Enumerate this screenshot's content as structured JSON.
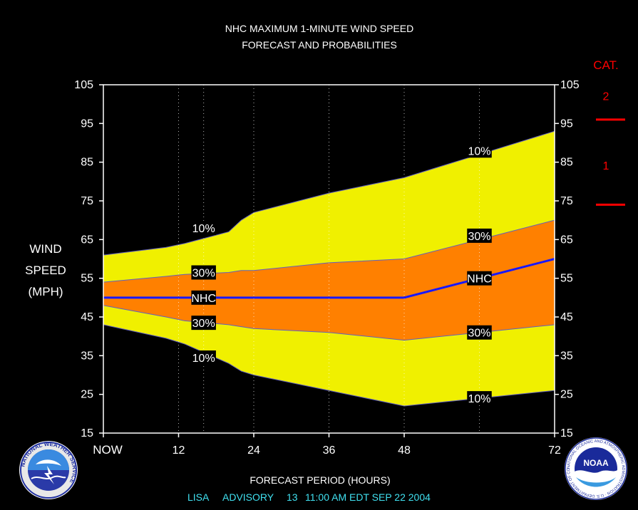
{
  "title_line1": "NHC MAXIMUM 1-MINUTE WIND SPEED",
  "title_line2": "FORECAST AND PROBABILITIES",
  "footer": {
    "storm": "LISA",
    "advisory_label": "ADVISORY",
    "advisory_number": "13",
    "datetime": "11:00 AM EDT SEP 22 2004"
  },
  "logos": {
    "left_text": "NATIONAL WEATHER SERVICE",
    "right_text": "NOAA",
    "right_ring_text": "NATIONAL OCEANIC AND ATMOSPHERIC ADMINISTRATION · U.S. DEPARTMENT OF COMMERCE"
  },
  "colors": {
    "background": "#000000",
    "band_10": "#f0f000",
    "band_30": "#ff8000",
    "nhc_line": "#1818ff",
    "band_edge": "#6060c0",
    "category": "#ff0000",
    "footer": "#40e0f0",
    "text": "#ffffff"
  },
  "chart_data": {
    "type": "area",
    "title": "NHC MAXIMUM 1-MINUTE WIND SPEED",
    "subtitle": "FORECAST AND PROBABILITIES",
    "xlabel": "FORECAST PERIOD (HOURS)",
    "ylabel": [
      "WIND",
      "SPEED",
      "(MPH)"
    ],
    "xlim": [
      0,
      72
    ],
    "ylim": [
      15,
      105
    ],
    "x_ticks": [
      {
        "x": 0,
        "label": "NOW"
      },
      {
        "x": 12,
        "label": "12"
      },
      {
        "x": 24,
        "label": "24"
      },
      {
        "x": 36,
        "label": "36"
      },
      {
        "x": 48,
        "label": "48"
      },
      {
        "x": 72,
        "label": "72"
      }
    ],
    "x_grid": [
      12,
      16,
      24,
      36,
      48,
      60
    ],
    "y_ticks": [
      15,
      25,
      35,
      45,
      55,
      65,
      75,
      85,
      95,
      105
    ],
    "series": [
      {
        "name": "10%",
        "x": [
          0,
          10,
          13,
          20,
          22,
          24,
          36,
          48,
          60,
          72
        ],
        "values": [
          61,
          63,
          64,
          67,
          70,
          72,
          77,
          81,
          87,
          93
        ]
      },
      {
        "name": "30%",
        "x": [
          0,
          10,
          13,
          20,
          22,
          24,
          36,
          48,
          60,
          72
        ],
        "values": [
          54,
          55.5,
          56,
          56.5,
          57,
          57,
          59,
          60,
          65,
          70
        ]
      },
      {
        "name": "NHC",
        "x": [
          0,
          12,
          24,
          36,
          48,
          60,
          72
        ],
        "values": [
          50,
          50,
          50,
          50,
          50,
          55,
          60
        ]
      },
      {
        "name": "30%",
        "x": [
          0,
          10,
          13,
          20,
          22,
          24,
          36,
          48,
          60,
          72
        ],
        "values": [
          48,
          45,
          44,
          43,
          42.5,
          42,
          41,
          39,
          41,
          43
        ]
      },
      {
        "name": "10%",
        "x": [
          0,
          10,
          13,
          20,
          22,
          24,
          36,
          48,
          60,
          72
        ],
        "values": [
          43,
          39.5,
          38,
          33,
          31,
          30,
          26,
          22,
          24,
          26
        ]
      }
    ],
    "labels": [
      {
        "text": "10%",
        "x": 16,
        "y": 68
      },
      {
        "text": "30%",
        "x": 16,
        "y": 56.5
      },
      {
        "text": "NHC",
        "x": 16,
        "y": 50
      },
      {
        "text": "30%",
        "x": 16,
        "y": 43.5
      },
      {
        "text": "10%",
        "x": 16,
        "y": 34.5
      },
      {
        "text": "10%",
        "x": 60,
        "y": 88
      },
      {
        "text": "30%",
        "x": 60,
        "y": 66
      },
      {
        "text": "NHC",
        "x": 60,
        "y": 55
      },
      {
        "text": "30%",
        "x": 60,
        "y": 41
      },
      {
        "text": "10%",
        "x": 60,
        "y": 24
      }
    ],
    "category_scale": {
      "header": "CAT.",
      "labels": [
        {
          "text": "2",
          "y": 102
        },
        {
          "text": "1",
          "y": 84
        }
      ],
      "thresholds": [
        96,
        74
      ]
    }
  }
}
